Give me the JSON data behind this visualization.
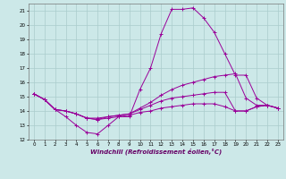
{
  "title": "",
  "xlabel": "Windchill (Refroidissement éolien,°C)",
  "background_color": "#cce8e8",
  "grid_color": "#aacccc",
  "line_color": "#990099",
  "xlim": [
    -0.5,
    23.5
  ],
  "ylim": [
    12,
    21.5
  ],
  "yticks": [
    12,
    13,
    14,
    15,
    16,
    17,
    18,
    19,
    20,
    21
  ],
  "xticks": [
    0,
    1,
    2,
    3,
    4,
    5,
    6,
    7,
    8,
    9,
    10,
    11,
    12,
    13,
    14,
    15,
    16,
    17,
    18,
    19,
    20,
    21,
    22,
    23
  ],
  "series": [
    [
      15.2,
      14.8,
      14.1,
      13.6,
      13.0,
      12.5,
      12.4,
      13.0,
      13.6,
      13.6,
      15.5,
      17.0,
      19.4,
      21.1,
      21.1,
      21.2,
      20.5,
      19.5,
      18.0,
      16.5,
      16.5,
      14.9,
      14.4,
      14.2
    ],
    [
      15.2,
      14.8,
      14.1,
      14.0,
      13.8,
      13.5,
      13.5,
      13.6,
      13.7,
      13.8,
      14.2,
      14.6,
      15.1,
      15.5,
      15.8,
      16.0,
      16.2,
      16.4,
      16.5,
      16.6,
      14.9,
      14.4,
      14.4,
      14.2
    ],
    [
      15.2,
      14.8,
      14.1,
      14.0,
      13.8,
      13.5,
      13.4,
      13.6,
      13.7,
      13.8,
      14.1,
      14.4,
      14.7,
      14.9,
      15.0,
      15.1,
      15.2,
      15.3,
      15.3,
      14.0,
      14.0,
      14.3,
      14.4,
      14.2
    ],
    [
      15.2,
      14.8,
      14.1,
      14.0,
      13.8,
      13.5,
      13.4,
      13.5,
      13.6,
      13.7,
      13.9,
      14.0,
      14.2,
      14.3,
      14.4,
      14.5,
      14.5,
      14.5,
      14.3,
      14.0,
      14.0,
      14.3,
      14.4,
      14.2
    ]
  ]
}
